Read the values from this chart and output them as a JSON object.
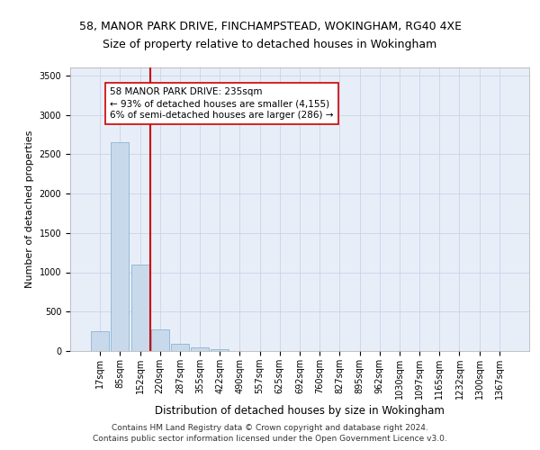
{
  "title": "58, MANOR PARK DRIVE, FINCHAMPSTEAD, WOKINGHAM, RG40 4XE",
  "subtitle": "Size of property relative to detached houses in Wokingham",
  "xlabel": "Distribution of detached houses by size in Wokingham",
  "ylabel": "Number of detached properties",
  "bar_color": "#c9d9ec",
  "bar_edge_color": "#7aaacf",
  "grid_color": "#c8d4e8",
  "bg_color": "#e8eef8",
  "vline_color": "#cc0000",
  "vline_x_index": 3,
  "annotation_text": "58 MANOR PARK DRIVE: 235sqm\n← 93% of detached houses are smaller (4,155)\n6% of semi-detached houses are larger (286) →",
  "categories": [
    "17sqm",
    "85sqm",
    "152sqm",
    "220sqm",
    "287sqm",
    "355sqm",
    "422sqm",
    "490sqm",
    "557sqm",
    "625sqm",
    "692sqm",
    "760sqm",
    "827sqm",
    "895sqm",
    "962sqm",
    "1030sqm",
    "1097sqm",
    "1165sqm",
    "1232sqm",
    "1300sqm",
    "1367sqm"
  ],
  "bar_heights": [
    250,
    2650,
    1100,
    280,
    95,
    50,
    25,
    0,
    0,
    0,
    0,
    0,
    0,
    0,
    0,
    0,
    0,
    0,
    0,
    0,
    0
  ],
  "ylim": [
    0,
    3600
  ],
  "yticks": [
    0,
    500,
    1000,
    1500,
    2000,
    2500,
    3000,
    3500
  ],
  "footer_text": "Contains HM Land Registry data © Crown copyright and database right 2024.\nContains public sector information licensed under the Open Government Licence v3.0.",
  "title_fontsize": 9,
  "subtitle_fontsize": 9,
  "xlabel_fontsize": 8.5,
  "ylabel_fontsize": 8,
  "tick_fontsize": 7,
  "annotation_fontsize": 7.5,
  "footer_fontsize": 6.5
}
